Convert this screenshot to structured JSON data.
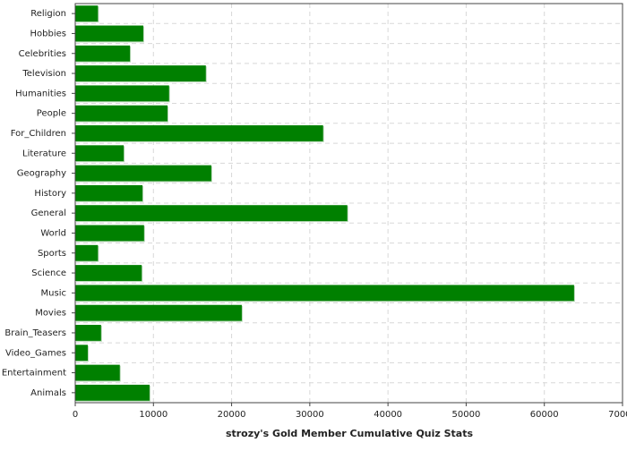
{
  "chart_data": {
    "type": "barh",
    "xlabel": "strozy's Gold Member Cumulative Quiz Stats",
    "categories": [
      "Religion",
      "Hobbies",
      "Celebrities",
      "Television",
      "Humanities",
      "People",
      "For_Children",
      "Literature",
      "Geography",
      "History",
      "General",
      "World",
      "Sports",
      "Science",
      "Music",
      "Movies",
      "Brain_Teasers",
      "Video_Games",
      "Entertainment",
      "Animals"
    ],
    "values": [
      2900,
      8700,
      7000,
      16700,
      12000,
      11800,
      31700,
      6200,
      17400,
      8600,
      34800,
      8800,
      2900,
      8500,
      63800,
      21300,
      3300,
      1600,
      5700,
      9500
    ],
    "color": "#008000",
    "xlim": [
      0,
      70000
    ],
    "xticks": [
      0,
      10000,
      20000,
      30000,
      40000,
      50000,
      60000,
      70000
    ],
    "grid": true
  }
}
